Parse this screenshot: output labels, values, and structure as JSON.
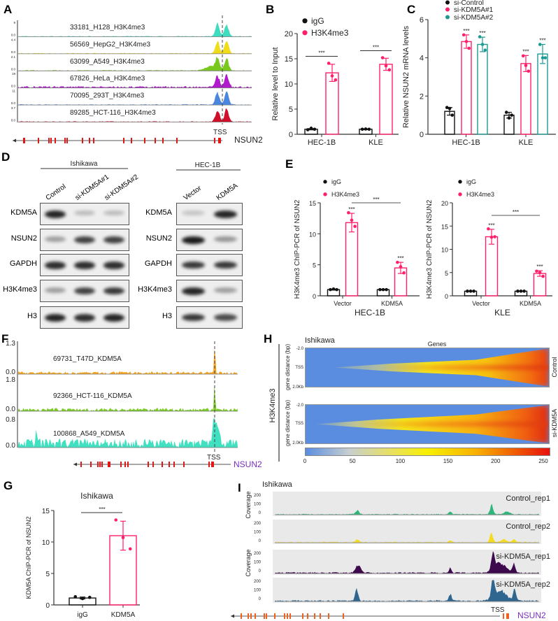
{
  "panels": {
    "A": "A",
    "B": "B",
    "C": "C",
    "D": "D",
    "E": "E",
    "F": "F",
    "G": "G",
    "H": "H",
    "I": "I"
  },
  "panelA": {
    "tracks": [
      {
        "name": "33181_H128_H3K4me3",
        "max": "9",
        "min": "0.0",
        "color": "#3fdcbf"
      },
      {
        "name": "56569_HepG2_H3K4me3",
        "max": "4.4",
        "min": "0.0",
        "color": "#f0dc1a"
      },
      {
        "name": "63099_A549_H3K4me3",
        "max": "2.1",
        "min": "0.0",
        "color": "#78c81e"
      },
      {
        "name": "67826_HeLa_H3K4me3",
        "max": "19",
        "min": "0.0",
        "color": "#b01ccc"
      },
      {
        "name": "70095_293T_H3K4me3",
        "max": "11",
        "min": "0.0",
        "color": "#4a86de"
      },
      {
        "name": "89285_HCT-116_H3K4me3",
        "max": "3.7",
        "min": "0.0",
        "color": "#d0102a"
      }
    ],
    "tss_label": "TSS",
    "gene_label": "NSUN2"
  },
  "panelD": {
    "left": {
      "title": "Ishikawa",
      "lanes": [
        "Control",
        "si-KDM5A#1",
        "si-KDM5A#2"
      ]
    },
    "right": {
      "title": "HEC-1B",
      "lanes": [
        "Vector",
        "KDM5A"
      ]
    },
    "rows": [
      "KDM5A",
      "NSUN2",
      "GAPDH",
      "H3K4me3",
      "H3"
    ],
    "left_intensity": [
      [
        0.95,
        0.15,
        0.15
      ],
      [
        0.3,
        0.8,
        0.8
      ],
      [
        0.9,
        0.9,
        0.9
      ],
      [
        0.3,
        0.8,
        0.85
      ],
      [
        0.95,
        0.9,
        0.95
      ]
    ],
    "right_intensity": [
      [
        0.1,
        0.95
      ],
      [
        1.0,
        0.35
      ],
      [
        0.85,
        0.85
      ],
      [
        0.95,
        0.3
      ],
      [
        0.85,
        0.75
      ]
    ]
  },
  "panelF": {
    "tracks": [
      {
        "name": "69731_T47D_KDM5A",
        "max": "1.3",
        "min": "0.0",
        "color": "#f5a623"
      },
      {
        "name": "92366_HCT-116_KDM5A",
        "max": "1.8",
        "min": "0.0",
        "color": "#7ccc2a"
      },
      {
        "name": "100868_A549_KDM5A",
        "max": "0.8",
        "min": "0.0",
        "color": "#40e0c0"
      }
    ],
    "tss_label": "TSS",
    "gene_label": "NSUN2"
  },
  "panelH": {
    "title": "Ishikawa",
    "xlabel": "Genes",
    "mark": "H3K4me3",
    "ylabel": "gene distance (bp)",
    "yticks": [
      "-2.0",
      "TSS",
      "2.0Kb"
    ],
    "conditions": [
      "Control",
      "si-KDM5A"
    ],
    "colorbar_ticks": [
      "0",
      "50",
      "100",
      "150",
      "200",
      "250"
    ]
  },
  "panelI": {
    "title": "Ishikawa",
    "ylabel": "Coverage",
    "yticks": [
      "200",
      "100",
      "0"
    ],
    "tracks": [
      {
        "name": "Control_rep1",
        "color": "#2fb67a"
      },
      {
        "name": "Control_rep2",
        "color": "#f5dc20"
      },
      {
        "name": "si-KDM5A_rep1",
        "color": "#3e0a4e"
      },
      {
        "name": "si-KDM5A_rep2",
        "color": "#2f6690"
      }
    ],
    "tss_label": "TSS",
    "gene_label": "NSUN2"
  },
  "chart_data": [
    {
      "id": "B",
      "type": "bar",
      "title": "",
      "ylabel": "Relative level to Input",
      "ylim": [
        0,
        20
      ],
      "yticks": [
        0,
        5,
        10,
        15,
        20
      ],
      "categories": [
        "HEC-1B",
        "KLE"
      ],
      "series": [
        {
          "name": "igG",
          "color": "#111111",
          "values": [
            1.0,
            1.0
          ],
          "sd": [
            0.12,
            0.08
          ],
          "points": [
            [
              0.9,
              1.2,
              1.0
            ],
            [
              1.0,
              1.05,
              1.0
            ]
          ]
        },
        {
          "name": "H3K4me3",
          "color": "#ff1f6b",
          "values": [
            12.2,
            13.9
          ],
          "sd": [
            1.7,
            1.2
          ],
          "points": [
            [
              14.1,
              11.6,
              10.8
            ],
            [
              15.2,
              13.6,
              12.8
            ]
          ]
        }
      ],
      "brackets": [
        {
          "label": "***",
          "cat": 0
        },
        {
          "label": "***",
          "cat": 1
        }
      ]
    },
    {
      "id": "C",
      "type": "bar",
      "ylabel": "Relative NSUN2 mRNA levels",
      "ylim": [
        0,
        6
      ],
      "yticks": [
        0,
        2,
        4,
        6
      ],
      "categories": [
        "HEC-1B",
        "KLE"
      ],
      "series": [
        {
          "name": "si-Control",
          "color": "#111111",
          "values": [
            1.2,
            1.0
          ],
          "sd": [
            0.2,
            0.15
          ],
          "points": [
            [
              1.4,
              1.35,
              1.0
            ],
            [
              1.15,
              0.85,
              1.0
            ]
          ]
        },
        {
          "name": "si-KDM5A#1",
          "color": "#ff1f6b",
          "values": [
            4.85,
            3.7
          ],
          "sd": [
            0.35,
            0.42
          ],
          "points": [
            [
              5.2,
              4.85,
              4.5
            ],
            [
              4.1,
              3.6,
              3.3
            ]
          ],
          "sig": "***"
        },
        {
          "name": "si-KDM5A#2",
          "color": "#1f9a93",
          "values": [
            4.7,
            4.2
          ],
          "sd": [
            0.38,
            0.5
          ],
          "points": [
            [
              5.1,
              4.7,
              4.4
            ],
            [
              4.7,
              4.0,
              4.0
            ]
          ],
          "sig": "***"
        }
      ]
    },
    {
      "id": "E1",
      "type": "bar",
      "ylabel": "H3K4me3 ChIP-PCR of NSUN2",
      "xlabel": "HEC-1B",
      "ylim": [
        0,
        15
      ],
      "yticks": [
        0,
        5,
        10,
        15
      ],
      "categories": [
        "Vector",
        "KDM5A"
      ],
      "series": [
        {
          "name": "igG",
          "color": "#111111",
          "values": [
            1.0,
            1.0
          ],
          "sd": [
            0.08,
            0.06
          ],
          "points": [
            [
              1.0,
              1.1,
              1.0
            ],
            [
              1.0,
              1.0,
              1.0
            ]
          ]
        },
        {
          "name": "H3K4me3",
          "color": "#ff1f6b",
          "values": [
            11.8,
            4.5
          ],
          "sd": [
            1.5,
            0.9
          ],
          "points": [
            [
              13.4,
              12.2,
              11.2
            ],
            [
              5.4,
              4.7,
              3.7
            ]
          ],
          "sig": "***"
        }
      ],
      "cross_bracket": {
        "label": "***"
      }
    },
    {
      "id": "E2",
      "type": "bar",
      "ylabel": "H3K4me3 ChIP-PCR of NSUN2",
      "xlabel": "KLE",
      "ylim": [
        0,
        20
      ],
      "yticks": [
        0,
        5,
        10,
        15,
        20
      ],
      "categories": [
        "Vector",
        "KDM5A"
      ],
      "series": [
        {
          "name": "igG",
          "color": "#111111",
          "values": [
            1.0,
            1.0
          ],
          "sd": [
            0.06,
            0.06
          ],
          "points": [
            [
              1.0,
              1.0,
              1.0
            ],
            [
              1.0,
              1.0,
              1.0
            ]
          ]
        },
        {
          "name": "H3K4me3",
          "color": "#ff1f6b",
          "values": [
            12.7,
            4.8
          ],
          "sd": [
            1.6,
            0.6
          ],
          "points": [
            [
              14.4,
              12.6,
              12.7
            ],
            [
              5.3,
              5.0,
              4.2
            ]
          ],
          "sig": "***"
        }
      ],
      "cross_bracket": {
        "label": "***"
      }
    },
    {
      "id": "G",
      "type": "bar",
      "title": "Ishikawa",
      "ylabel": "KDM5A ChIP-PCR of NSUN2",
      "ylim": [
        0,
        15
      ],
      "yticks": [
        0,
        5,
        10,
        15
      ],
      "categories": [
        "igG",
        "KDM5A"
      ],
      "series": [
        {
          "name": "bars",
          "colors": [
            "#111111",
            "#ff1f6b"
          ],
          "values": [
            1.1,
            11.0
          ],
          "sd": [
            0.15,
            2.3
          ],
          "points": [
            [
              1.3,
              1.0,
              1.2
            ],
            [
              13.5,
              10.7,
              8.9
            ]
          ]
        }
      ],
      "pair_bracket": {
        "label": "***"
      }
    }
  ]
}
